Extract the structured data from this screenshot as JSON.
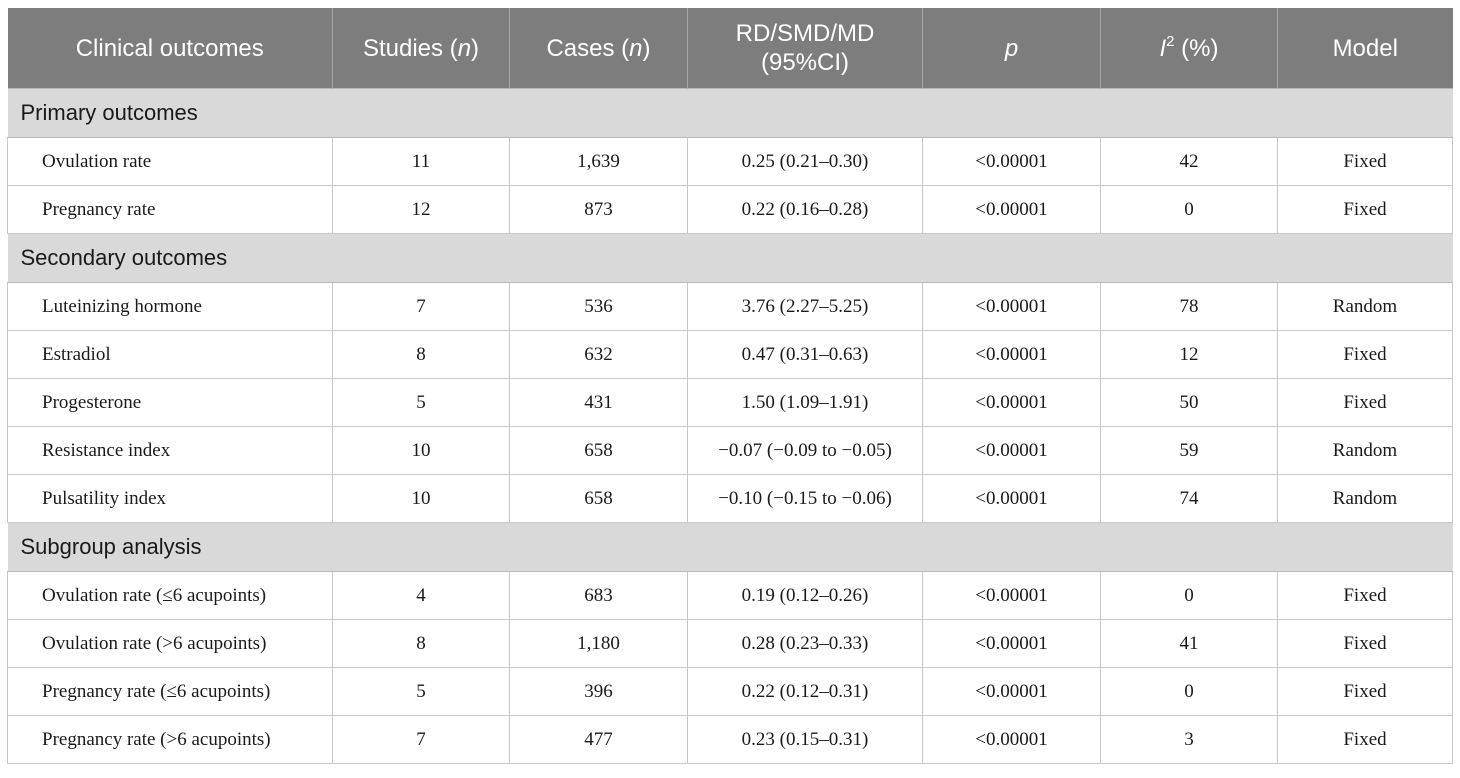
{
  "table": {
    "headers": {
      "outcome": "Clinical outcomes",
      "studies_word": "Studies",
      "studies_unit": "n",
      "cases_word": "Cases",
      "cases_unit": "n",
      "effect_line1": "RD/SMD/MD",
      "effect_line2": "(95%CI)",
      "p": "p",
      "i2_letter": "I",
      "i2_sup": "2",
      "i2_unit": "(%)",
      "model": "Model"
    },
    "sections": [
      {
        "title": "Primary outcomes",
        "rows": [
          {
            "outcome": "Ovulation rate",
            "studies": "11",
            "cases": "1,639",
            "effect": "0.25 (0.21–0.30)",
            "p": "<0.00001",
            "i2": "42",
            "model": "Fixed"
          },
          {
            "outcome": "Pregnancy rate",
            "studies": "12",
            "cases": "873",
            "effect": "0.22 (0.16–0.28)",
            "p": "<0.00001",
            "i2": "0",
            "model": "Fixed"
          }
        ]
      },
      {
        "title": "Secondary outcomes",
        "rows": [
          {
            "outcome": "Luteinizing hormone",
            "studies": "7",
            "cases": "536",
            "effect": "3.76 (2.27–5.25)",
            "p": "<0.00001",
            "i2": "78",
            "model": "Random"
          },
          {
            "outcome": "Estradiol",
            "studies": "8",
            "cases": "632",
            "effect": "0.47 (0.31–0.63)",
            "p": "<0.00001",
            "i2": "12",
            "model": "Fixed"
          },
          {
            "outcome": "Progesterone",
            "studies": "5",
            "cases": "431",
            "effect": "1.50 (1.09–1.91)",
            "p": "<0.00001",
            "i2": "50",
            "model": "Fixed"
          },
          {
            "outcome": "Resistance index",
            "studies": "10",
            "cases": "658",
            "effect": "−0.07 (−0.09 to −0.05)",
            "p": "<0.00001",
            "i2": "59",
            "model": "Random"
          },
          {
            "outcome": "Pulsatility index",
            "studies": "10",
            "cases": "658",
            "effect": "−0.10 (−0.15 to −0.06)",
            "p": "<0.00001",
            "i2": "74",
            "model": "Random"
          }
        ]
      },
      {
        "title": "Subgroup analysis",
        "rows": [
          {
            "outcome": "Ovulation rate (≤6 acupoints)",
            "studies": "4",
            "cases": "683",
            "effect": "0.19 (0.12–0.26)",
            "p": "<0.00001",
            "i2": "0",
            "model": "Fixed"
          },
          {
            "outcome": "Ovulation rate (>6 acupoints)",
            "studies": "8",
            "cases": "1,180",
            "effect": "0.28 (0.23–0.33)",
            "p": "<0.00001",
            "i2": "41",
            "model": "Fixed"
          },
          {
            "outcome": "Pregnancy rate (≤6 acupoints)",
            "studies": "5",
            "cases": "396",
            "effect": "0.22 (0.12–0.31)",
            "p": "<0.00001",
            "i2": "0",
            "model": "Fixed"
          },
          {
            "outcome": "Pregnancy rate (>6 acupoints)",
            "studies": "7",
            "cases": "477",
            "effect": "0.23 (0.15–0.31)",
            "p": "<0.00001",
            "i2": "3",
            "model": "Fixed"
          }
        ]
      }
    ]
  },
  "colors": {
    "header_bg": "#7d7d7d",
    "header_text": "#ffffff",
    "section_bg": "#d9d9d9",
    "grid_line": "#c8c8c8"
  }
}
